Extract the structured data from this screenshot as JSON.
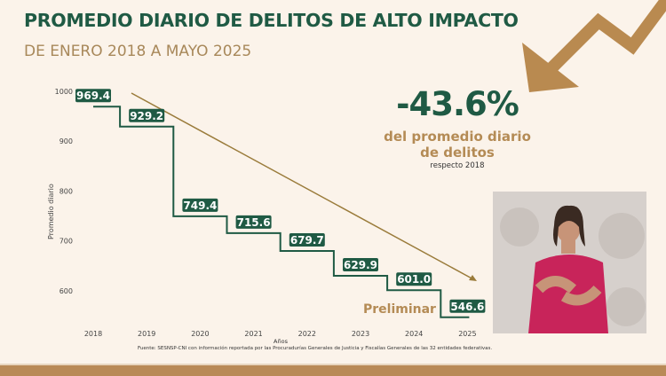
{
  "header": {
    "title": "PROMEDIO DIARIO DE DELITOS DE ALTO IMPACTO",
    "subtitle": "DE ENERO 2018 A MAYO 2025"
  },
  "highlight": {
    "value": "-43.6%",
    "description": "del promedio diario de delitos",
    "note": "respecto 2018"
  },
  "preliminary_label": "Preliminar",
  "source": "Fuente: SESNSP-CNI con información reportada por las Procuradurías Generales de Justicia y Fiscalías Generales de las 32 entidades federativas.",
  "colors": {
    "primary_green": "#1f5a44",
    "accent_gold": "#b48b55",
    "background": "#fbf3ea",
    "trend_line": "#9a7b3a"
  },
  "chart_data": {
    "type": "line",
    "style": "step",
    "xlabel": "Años",
    "ylabel": "Promedio diario",
    "categories": [
      "2018",
      "2019",
      "2020",
      "2021",
      "2022",
      "2023",
      "2024",
      "2025"
    ],
    "values": [
      969.4,
      929.2,
      749.4,
      715.6,
      679.7,
      629.9,
      601.0,
      546.6
    ],
    "data_labels": [
      "969.4",
      "929.2",
      "749.4",
      "715.6",
      "679.7",
      "629.9",
      "601.0",
      "546.6"
    ],
    "yticks": [
      600,
      700,
      800,
      900,
      1000
    ],
    "ylim": [
      530,
      1000
    ],
    "grid": false,
    "trend_arrow": "downward"
  }
}
